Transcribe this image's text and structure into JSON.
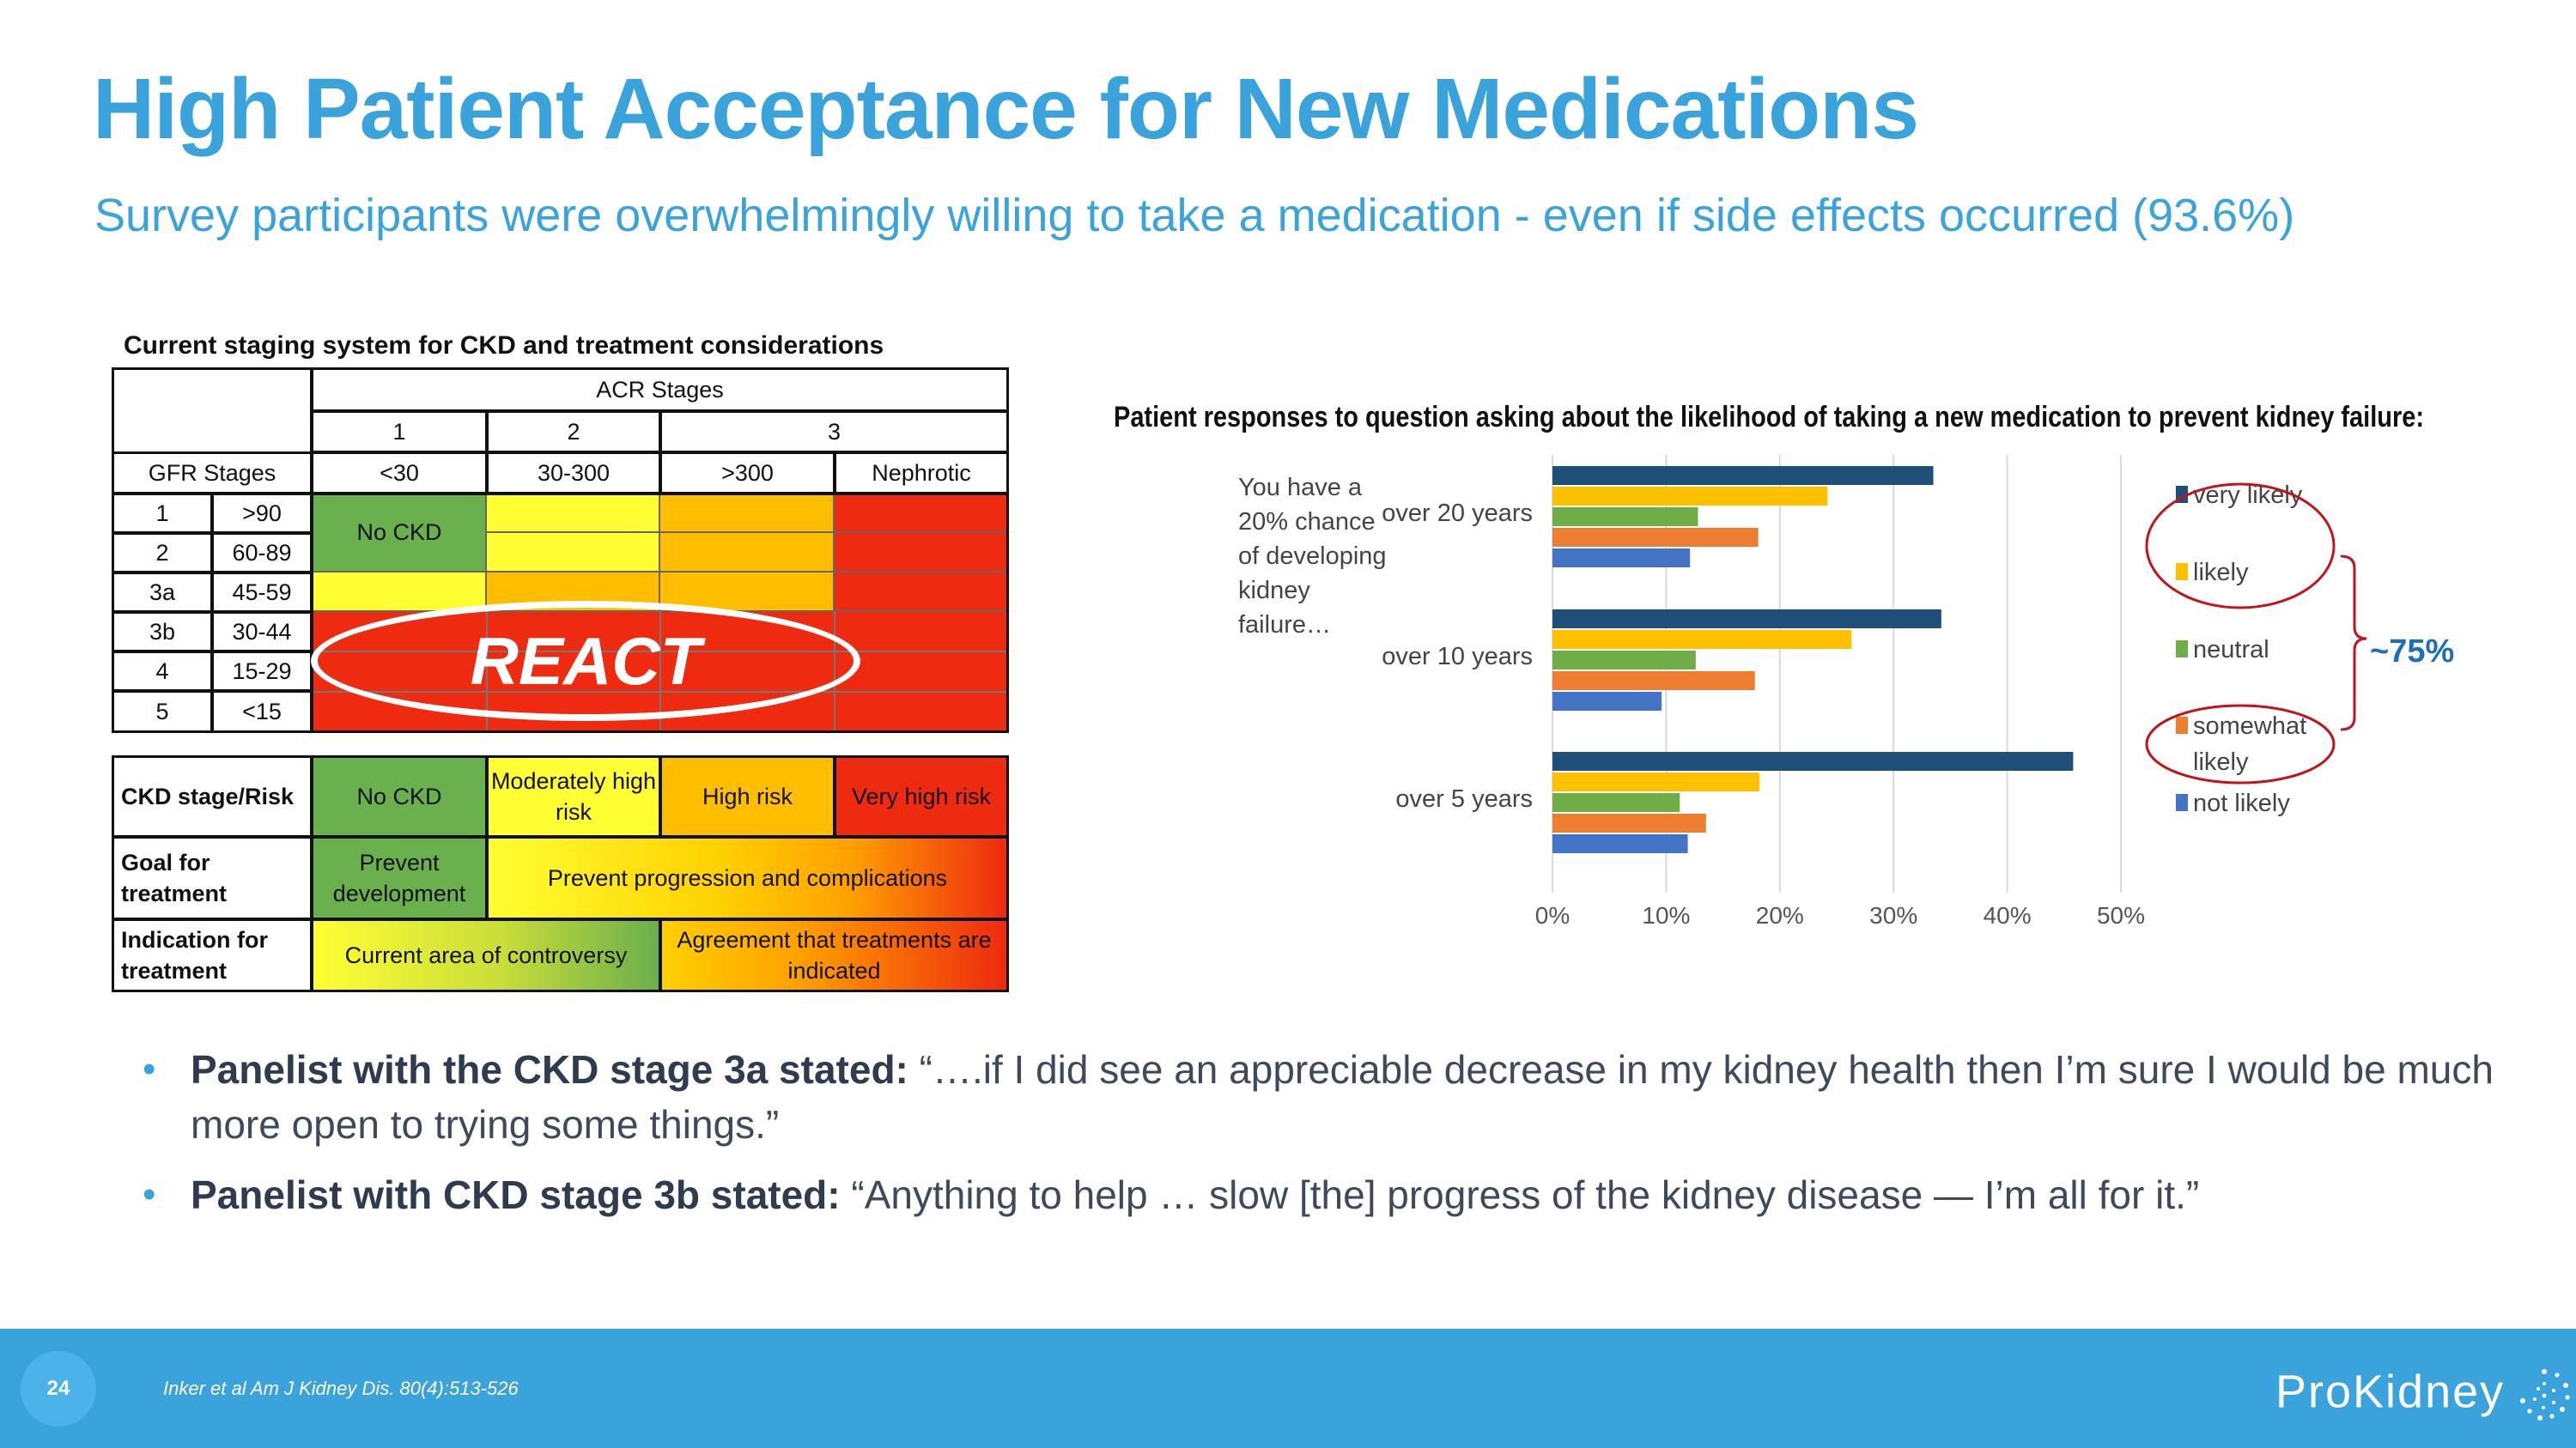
{
  "slide": {
    "title": "High Patient Acceptance for New Medications",
    "subtitle": "Survey participants were overwhelmingly willing to take a medication -  even if side effects occurred (93.6%)"
  },
  "staging_table": {
    "title": "Current staging system for CKD and treatment considerations",
    "acr_header": "ACR Stages",
    "gfr_header": "GFR Stages",
    "acr_stages": [
      "1",
      "2",
      "3"
    ],
    "acr_ranges": [
      "<30",
      "30-300",
      ">300",
      "Nephrotic"
    ],
    "gfr_rows": [
      {
        "stage": "1",
        "range": ">90"
      },
      {
        "stage": "2",
        "range": "60-89"
      },
      {
        "stage": "3a",
        "range": "45-59"
      },
      {
        "stage": "3b",
        "range": "30-44"
      },
      {
        "stage": "4",
        "range": "15-29"
      },
      {
        "stage": "5",
        "range": "<15"
      }
    ],
    "no_ckd_label": "No CKD",
    "react_label": "REACT",
    "risk_header": "CKD stage/Risk",
    "risk_labels": [
      "No CKD",
      "Moderately high risk",
      "High risk",
      "Very high risk"
    ],
    "goal_header": "Goal for treatment",
    "goal_values": [
      "Prevent development",
      "Prevent progression and complications"
    ],
    "indication_header": "Indication for treatment",
    "indication_values": [
      "Current area of controversy",
      "Agreement that treatments are indicated"
    ],
    "colors": {
      "green": "#6ab04c",
      "yellow": "#ffff33",
      "orange": "#ffbf00",
      "red": "#ee2a10"
    }
  },
  "chart_data": {
    "type": "bar",
    "orientation": "horizontal",
    "title": "Patient responses to question asking about the likelihood of taking a new medication to prevent kidney failure:",
    "annotation": "You have a 20% chance of developing kidney failure…",
    "categories": [
      "over 20 years",
      "over 10 years",
      "over 5 years"
    ],
    "series": [
      {
        "name": "very likely",
        "color": "#1f4e79",
        "values": [
          33.5,
          34.2,
          45.8
        ]
      },
      {
        "name": "likely",
        "color": "#ffc000",
        "values": [
          24.2,
          26.3,
          18.2
        ]
      },
      {
        "name": "neutral",
        "color": "#70ad47",
        "values": [
          12.8,
          12.6,
          11.2
        ]
      },
      {
        "name": "somewhat likely",
        "color": "#ed7d31",
        "values": [
          18.1,
          17.8,
          13.5
        ]
      },
      {
        "name": "not likely",
        "color": "#4472c4",
        "values": [
          12.1,
          9.6,
          11.9
        ]
      }
    ],
    "xlim": [
      0,
      50
    ],
    "xticks": [
      "0%",
      "10%",
      "20%",
      "30%",
      "40%",
      "50%"
    ],
    "callout": "~75%"
  },
  "bullets": [
    {
      "bold": "Panelist with the CKD stage 3a stated:",
      "text": " “….if I did see an appreciable decrease in my kidney health then I’m sure I would be much more open to trying some things.”"
    },
    {
      "bold": "Panelist with CKD stage 3b stated:",
      "text": " “Anything to help … slow [the] progress of the kidney disease — I’m all for it.”"
    }
  ],
  "footer": {
    "page_number": "24",
    "citation": "Inker et al Am J Kidney Dis. 80(4):513-526",
    "logo": "ProKidney"
  }
}
